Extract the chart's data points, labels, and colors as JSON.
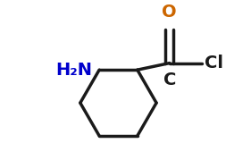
{
  "bg_color": "#ffffff",
  "line_color": "#1a1a1a",
  "bond_width": 2.5,
  "nh2_label": "H₂N",
  "nh2_color": "#0000cc",
  "o_label": "O",
  "o_color": "#cc6600",
  "c_label": "C",
  "c_color": "#1a1a1a",
  "cl_label": "Cl",
  "cl_color": "#1a1a1a",
  "figsize": [
    2.81,
    1.79
  ],
  "dpi": 100,
  "font_size": 14
}
